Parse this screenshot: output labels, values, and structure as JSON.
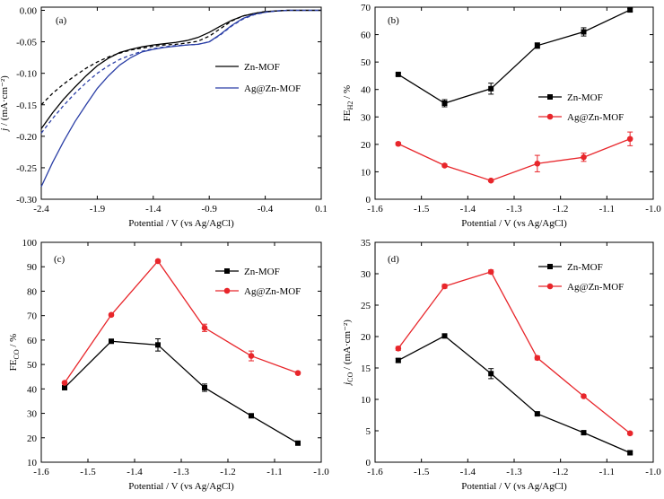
{
  "chart_data": [
    {
      "id": "a",
      "type": "line",
      "panel_label": "(a)",
      "xlabel": "Potential / V (vs Ag/AgCl)",
      "ylabel": "j / (mA·cm⁻²)",
      "xlim": [
        -2.4,
        0.1
      ],
      "ylim": [
        -0.3,
        0.005
      ],
      "xticks": [
        -2.4,
        -1.9,
        -1.4,
        -0.9,
        -0.4,
        0.1
      ],
      "yticks": [
        0.0,
        -0.05,
        -0.1,
        -0.15,
        -0.2,
        -0.25,
        -0.3
      ],
      "xtick_labels": [
        "-2.4",
        "-1.9",
        "-1.4",
        "-0.9",
        "-0.4",
        "0.1"
      ],
      "ytick_labels": [
        "0.00",
        "-0.05",
        "-0.10",
        "-0.15",
        "-0.20",
        "-0.25",
        "-0.30"
      ],
      "legend_position": "center-right",
      "series": [
        {
          "name": "Zn-MOF",
          "color": "#000000",
          "style": "solid",
          "in_legend": true,
          "x": [
            -2.4,
            -2.3,
            -2.2,
            -2.1,
            -2.0,
            -1.9,
            -1.8,
            -1.7,
            -1.6,
            -1.5,
            -1.4,
            -1.3,
            -1.2,
            -1.1,
            -1.0,
            -0.9,
            -0.8,
            -0.7,
            -0.6,
            -0.5,
            -0.4,
            -0.3,
            -0.2,
            -0.1,
            0.0,
            0.1
          ],
          "y": [
            -0.188,
            -0.163,
            -0.141,
            -0.122,
            -0.104,
            -0.088,
            -0.076,
            -0.067,
            -0.062,
            -0.058,
            -0.055,
            -0.053,
            -0.051,
            -0.048,
            -0.043,
            -0.035,
            -0.025,
            -0.016,
            -0.009,
            -0.005,
            -0.002,
            -0.001,
            0.0,
            0.0,
            0.0,
            0.0
          ]
        },
        {
          "name": "Ag@Zn-MOF",
          "color": "#2b3fa6",
          "style": "solid",
          "in_legend": true,
          "x": [
            -2.4,
            -2.3,
            -2.2,
            -2.1,
            -2.0,
            -1.9,
            -1.8,
            -1.7,
            -1.6,
            -1.5,
            -1.4,
            -1.3,
            -1.2,
            -1.1,
            -1.0,
            -0.9,
            -0.8,
            -0.7,
            -0.6,
            -0.5,
            -0.4,
            -0.3,
            -0.2,
            -0.1,
            0.0,
            0.1
          ],
          "y": [
            -0.28,
            -0.242,
            -0.208,
            -0.177,
            -0.15,
            -0.124,
            -0.104,
            -0.087,
            -0.075,
            -0.066,
            -0.062,
            -0.059,
            -0.057,
            -0.055,
            -0.054,
            -0.05,
            -0.038,
            -0.024,
            -0.013,
            -0.006,
            -0.003,
            -0.001,
            0.0,
            0.0,
            0.0,
            0.0
          ]
        },
        {
          "name": "",
          "color": "#000000",
          "style": "dashed",
          "in_legend": false,
          "x": [
            -2.4,
            -2.3,
            -2.2,
            -2.1,
            -2.0,
            -1.9,
            -1.8,
            -1.7,
            -1.6,
            -1.5,
            -1.4,
            -1.3,
            -1.2,
            -1.1,
            -1.0,
            -0.9,
            -0.8,
            -0.7,
            -0.6,
            -0.5,
            -0.4,
            -0.3,
            -0.2,
            -0.1,
            0.0,
            0.1
          ],
          "y": [
            -0.15,
            -0.132,
            -0.117,
            -0.104,
            -0.092,
            -0.082,
            -0.074,
            -0.068,
            -0.063,
            -0.06,
            -0.057,
            -0.055,
            -0.054,
            -0.052,
            -0.049,
            -0.041,
            -0.029,
            -0.017,
            -0.009,
            -0.005,
            -0.002,
            -0.001,
            0.0,
            0.0,
            0.0,
            0.0
          ]
        },
        {
          "name": "",
          "color": "#2b3fa6",
          "style": "dashed",
          "in_legend": false,
          "x": [
            -2.4,
            -2.3,
            -2.2,
            -2.1,
            -2.0,
            -1.9,
            -1.8,
            -1.7,
            -1.6,
            -1.5,
            -1.4,
            -1.3,
            -1.2,
            -1.1,
            -1.0,
            -0.9,
            -0.8,
            -0.7,
            -0.6,
            -0.5,
            -0.4,
            -0.3,
            -0.2,
            -0.1,
            0.0,
            0.1
          ],
          "y": [
            -0.195,
            -0.172,
            -0.151,
            -0.132,
            -0.115,
            -0.1,
            -0.088,
            -0.078,
            -0.071,
            -0.065,
            -0.061,
            -0.058,
            -0.056,
            -0.055,
            -0.054,
            -0.05,
            -0.039,
            -0.025,
            -0.014,
            -0.007,
            -0.003,
            -0.001,
            0.0,
            0.0,
            0.0,
            0.0
          ]
        }
      ]
    },
    {
      "id": "b",
      "type": "line",
      "panel_label": "(b)",
      "xlabel": "Potential / V (vs Ag/AgCl)",
      "ylabel": "FE_H2 / %",
      "ylabel_main": "FE",
      "ylabel_sub": "H2",
      "ylabel_tail": " / %",
      "xlim": [
        -1.6,
        -1.0
      ],
      "ylim": [
        0,
        70
      ],
      "xticks": [
        -1.6,
        -1.5,
        -1.4,
        -1.3,
        -1.2,
        -1.1,
        -1.0
      ],
      "yticks": [
        0,
        10,
        20,
        30,
        40,
        50,
        60,
        70
      ],
      "xtick_labels": [
        "-1.6",
        "-1.5",
        "-1.4",
        "-1.3",
        "-1.2",
        "-1.1",
        "-1.0"
      ],
      "ytick_labels": [
        "0",
        "10",
        "20",
        "30",
        "40",
        "50",
        "60",
        "70"
      ],
      "legend_position": "center-right",
      "series": [
        {
          "name": "Zn-MOF",
          "color": "#000000",
          "marker": "square",
          "x": [
            -1.55,
            -1.45,
            -1.35,
            -1.25,
            -1.15,
            -1.05
          ],
          "y": [
            45.5,
            35.0,
            40.3,
            56.0,
            61.0,
            69.0
          ],
          "err": [
            0.5,
            1.3,
            2.0,
            1.0,
            1.5,
            0.5
          ]
        },
        {
          "name": "Ag@Zn-MOF",
          "color": "#e8262b",
          "marker": "circle",
          "x": [
            -1.55,
            -1.45,
            -1.35,
            -1.25,
            -1.15,
            -1.05
          ],
          "y": [
            20.2,
            12.3,
            6.8,
            13.0,
            15.3,
            22.0
          ],
          "err": [
            0.5,
            0.5,
            0.4,
            3.0,
            1.5,
            2.5
          ]
        }
      ]
    },
    {
      "id": "c",
      "type": "line",
      "panel_label": "(c)",
      "xlabel": "Potential / V (vs Ag/AgCl)",
      "ylabel": "FE_CO / %",
      "ylabel_main": "FE",
      "ylabel_sub": "CO",
      "ylabel_tail": " / %",
      "xlim": [
        -1.6,
        -1.0
      ],
      "ylim": [
        10,
        100
      ],
      "xticks": [
        -1.6,
        -1.5,
        -1.4,
        -1.3,
        -1.2,
        -1.1,
        -1.0
      ],
      "yticks": [
        10,
        20,
        30,
        40,
        50,
        60,
        70,
        80,
        90,
        100
      ],
      "xtick_labels": [
        "-1.6",
        "-1.5",
        "-1.4",
        "-1.3",
        "-1.2",
        "-1.1",
        "-1.0"
      ],
      "ytick_labels": [
        "10",
        "20",
        "30",
        "40",
        "50",
        "60",
        "70",
        "80",
        "90",
        "100"
      ],
      "legend_position": "top-right",
      "series": [
        {
          "name": "Zn-MOF",
          "color": "#000000",
          "marker": "square",
          "x": [
            -1.55,
            -1.45,
            -1.35,
            -1.25,
            -1.15,
            -1.05
          ],
          "y": [
            40.5,
            59.5,
            58.0,
            40.5,
            29.0,
            17.8
          ],
          "err": [
            0.5,
            0.5,
            2.5,
            1.5,
            0.5,
            0.5
          ]
        },
        {
          "name": "Ag@Zn-MOF",
          "color": "#e8262b",
          "marker": "circle",
          "x": [
            -1.55,
            -1.45,
            -1.35,
            -1.25,
            -1.15,
            -1.05
          ],
          "y": [
            42.5,
            70.3,
            92.3,
            65.0,
            53.5,
            46.5
          ],
          "err": [
            0.5,
            0.5,
            0.5,
            1.5,
            2.0,
            0.5
          ]
        }
      ]
    },
    {
      "id": "d",
      "type": "line",
      "panel_label": "(d)",
      "xlabel": "Potential / V (vs Ag/AgCl)",
      "ylabel": "j_CO / (mA·cm⁻²)",
      "ylabel_main": "j",
      "ylabel_sub": "CO",
      "ylabel_tail": " / (mA·cm⁻²)",
      "xlim": [
        -1.6,
        -1.0
      ],
      "ylim": [
        0,
        35
      ],
      "xticks": [
        -1.6,
        -1.5,
        -1.4,
        -1.3,
        -1.2,
        -1.1,
        -1.0
      ],
      "yticks": [
        0,
        5,
        10,
        15,
        20,
        25,
        30,
        35
      ],
      "xtick_labels": [
        "-1.6",
        "-1.5",
        "-1.4",
        "-1.3",
        "-1.2",
        "-1.1",
        "-1.0"
      ],
      "ytick_labels": [
        "0",
        "5",
        "10",
        "15",
        "20",
        "25",
        "30",
        "35"
      ],
      "legend_position": "top-right",
      "series": [
        {
          "name": "Zn-MOF",
          "color": "#000000",
          "marker": "square",
          "x": [
            -1.55,
            -1.45,
            -1.35,
            -1.25,
            -1.15,
            -1.05
          ],
          "y": [
            16.2,
            20.1,
            14.1,
            7.7,
            4.7,
            1.5
          ],
          "err": [
            0.3,
            0.3,
            0.8,
            0.2,
            0.2,
            0.2
          ]
        },
        {
          "name": "Ag@Zn-MOF",
          "color": "#e8262b",
          "marker": "circle",
          "x": [
            -1.55,
            -1.45,
            -1.35,
            -1.25,
            -1.15,
            -1.05
          ],
          "y": [
            18.1,
            28.0,
            30.3,
            16.6,
            10.5,
            4.6
          ],
          "err": [
            0.3,
            0.3,
            0.3,
            0.3,
            0.2,
            0.2
          ]
        }
      ]
    }
  ]
}
